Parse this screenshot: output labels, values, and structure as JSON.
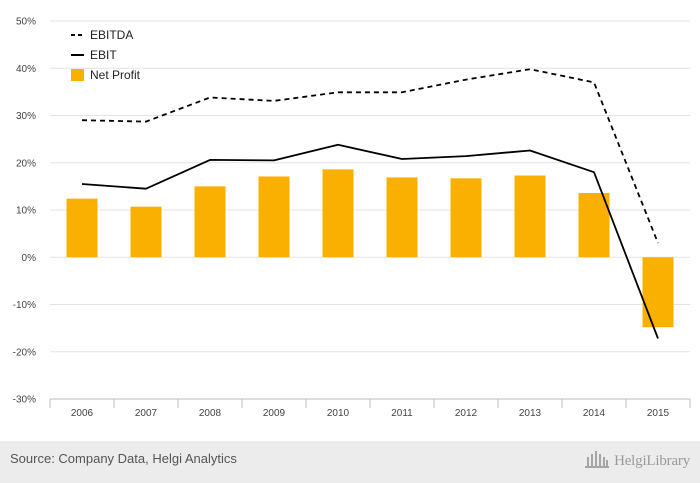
{
  "chart_data": {
    "type": "bar",
    "categories": [
      "2006",
      "2007",
      "2008",
      "2009",
      "2010",
      "2011",
      "2012",
      "2013",
      "2014",
      "2015"
    ],
    "series": [
      {
        "name": "EBITDA",
        "kind": "line",
        "style": "dashed",
        "color": "#000000",
        "values": [
          29.0,
          28.7,
          33.8,
          33.1,
          34.9,
          34.9,
          37.6,
          39.8,
          37.0,
          3.0
        ]
      },
      {
        "name": "EBIT",
        "kind": "line",
        "style": "solid",
        "color": "#000000",
        "values": [
          15.5,
          14.5,
          20.6,
          20.5,
          23.8,
          20.8,
          21.4,
          22.6,
          18.0,
          -17.2
        ]
      },
      {
        "name": "Net Profit",
        "kind": "bar",
        "color": "#f9b000",
        "values": [
          12.4,
          10.7,
          15.0,
          17.1,
          18.6,
          16.9,
          16.7,
          17.3,
          13.6,
          -14.8
        ]
      }
    ],
    "y_ticks": [
      "50%",
      "40%",
      "30%",
      "20%",
      "10%",
      "0%",
      "-10%",
      "-20%",
      "-30%"
    ],
    "ylim": [
      -30,
      50
    ],
    "grid": true,
    "legend_position": "top-left",
    "title": "",
    "xlabel": "",
    "ylabel": ""
  },
  "footer": {
    "source": "Source: Company Data, Helgi Analytics",
    "logo_text": "HelgiLibrary",
    "logo_icon": "library-building-icon"
  }
}
